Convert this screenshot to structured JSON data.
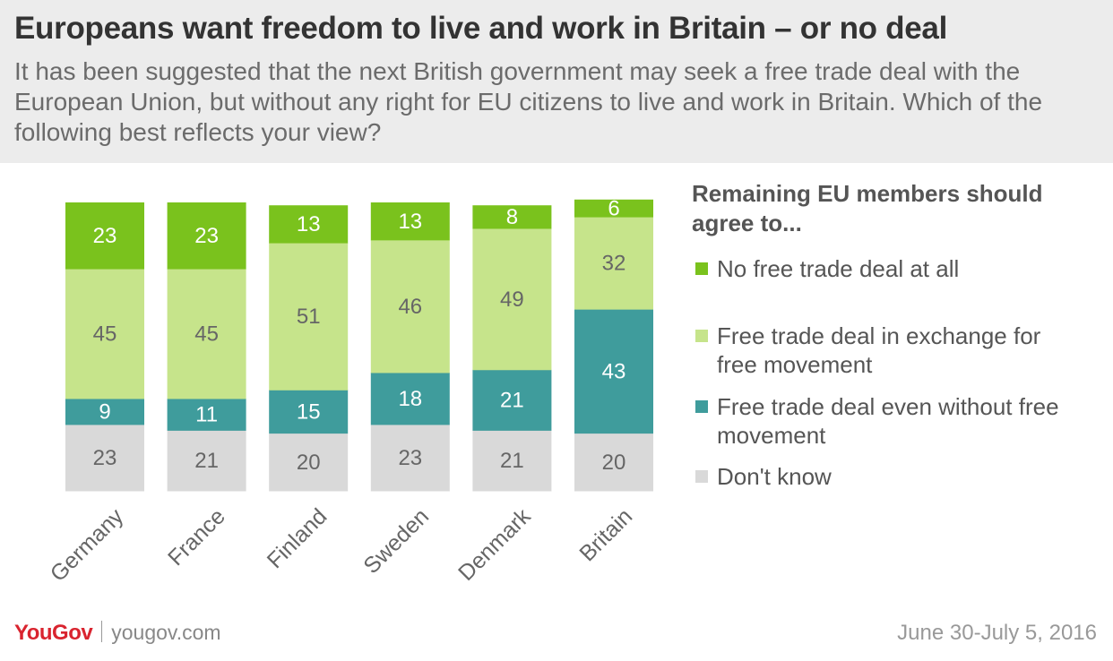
{
  "header": {
    "title": "Europeans want freedom to live and work in Britain – or no deal",
    "subtitle": "It has been suggested that the next British government may seek a free trade deal with the European Union, but without any right for EU citizens to live and work in Britain. Which of the following best reflects your view?"
  },
  "legend": {
    "title": "Remaining EU members should agree to...",
    "items": [
      {
        "label": "No free trade deal at all",
        "color": "#7ac21d"
      },
      {
        "label": "Free trade deal in exchange for free movement",
        "color": "#c6e48b"
      },
      {
        "label": "Free trade deal even without free movement",
        "color": "#3f9c9c"
      },
      {
        "label": "Don't know",
        "color": "#d9d9d9"
      }
    ]
  },
  "footer": {
    "brand": "YouGov",
    "site": "yougov.com",
    "date": "June 30-July 5, 2016"
  },
  "chart_data": {
    "type": "bar",
    "stacked": true,
    "orientation": "vertical",
    "categories": [
      "Germany",
      "France",
      "Finland",
      "Sweden",
      "Denmark",
      "Britain"
    ],
    "series": [
      {
        "name": "Don't know",
        "color": "#d9d9d9",
        "text_color": "#666666",
        "values": [
          23,
          21,
          20,
          23,
          21,
          20
        ]
      },
      {
        "name": "Free trade deal even without free movement",
        "color": "#3f9c9c",
        "text_color": "#ffffff",
        "values": [
          9,
          11,
          15,
          18,
          21,
          43
        ]
      },
      {
        "name": "Free trade deal in exchange for free movement",
        "color": "#c6e48b",
        "text_color": "#666666",
        "values": [
          45,
          45,
          51,
          46,
          49,
          32
        ]
      },
      {
        "name": "No free trade deal at all",
        "color": "#7ac21d",
        "text_color": "#ffffff",
        "values": [
          23,
          23,
          13,
          13,
          8,
          6
        ]
      }
    ],
    "legend": "right",
    "grid": false
  }
}
